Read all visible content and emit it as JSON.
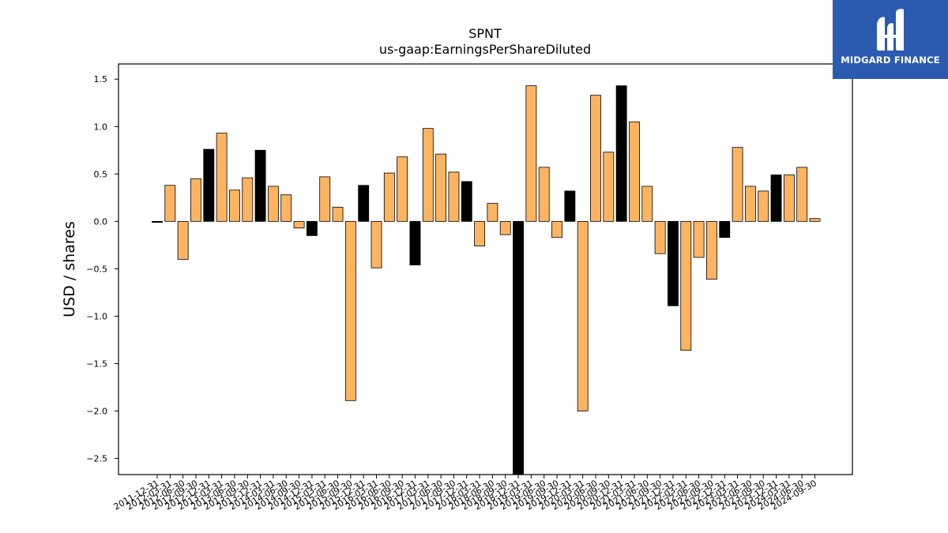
{
  "chart_data": {
    "type": "bar",
    "title": "SPNT",
    "subtitle": "us-gaap:EarningsPerShareDiluted",
    "xlabel": "",
    "ylabel": "USD / shares",
    "ylim": [
      -2.67,
      1.66
    ],
    "yticks": [
      1.5,
      1.0,
      0.5,
      0.0,
      -0.5,
      -1.0,
      -1.5,
      -2.0,
      -2.5
    ],
    "ytick_labels": [
      "1.5",
      "1.0",
      "0.5",
      "0.0",
      "−0.5",
      "−1.0",
      "−1.5",
      "−2.0",
      "−2.5"
    ],
    "grid": false,
    "colors": {
      "quarterly": "#fdb462",
      "annual": "#000000",
      "edge": "#000000"
    },
    "categories": [
      "2011-12-31",
      "2012-03-31",
      "2012-06-30",
      "2012-09-30",
      "2012-12-31",
      "2013-03-31",
      "2013-06-30",
      "2013-09-30",
      "2013-12-31",
      "2014-03-31",
      "2014-06-30",
      "2014-09-30",
      "2014-12-31",
      "2015-03-31",
      "2015-06-30",
      "2015-09-30",
      "2015-12-31",
      "2016-03-31",
      "2016-06-30",
      "2016-09-30",
      "2016-12-31",
      "2017-03-31",
      "2017-06-30",
      "2017-09-30",
      "2017-12-31",
      "2018-03-31",
      "2018-06-30",
      "2018-09-30",
      "2018-12-31",
      "2019-03-31",
      "2019-06-30",
      "2019-09-30",
      "2019-12-31",
      "2020-03-31",
      "2020-06-30",
      "2020-09-30",
      "2020-12-31",
      "2021-03-31",
      "2021-06-30",
      "2021-09-30",
      "2021-12-31",
      "2022-03-31",
      "2022-06-30",
      "2022-09-30",
      "2022-12-31",
      "2023-03-31",
      "2023-06-30",
      "2023-09-30",
      "2023-12-31",
      "2024-03-31",
      "2024-06-30",
      "2024-09-30"
    ],
    "values": [
      -0.01,
      0.38,
      -0.4,
      0.45,
      0.76,
      0.93,
      0.33,
      0.46,
      0.75,
      0.37,
      0.28,
      -0.07,
      -0.15,
      0.47,
      0.15,
      -1.89,
      0.38,
      -0.49,
      0.51,
      0.68,
      -0.46,
      0.98,
      0.71,
      0.52,
      0.42,
      -0.26,
      0.19,
      -0.14,
      -2.67,
      1.43,
      0.57,
      -0.17,
      0.32,
      -2.0,
      1.33,
      0.73,
      1.43,
      1.05,
      0.37,
      -0.34,
      -0.89,
      -1.36,
      -0.38,
      -0.61,
      -0.17,
      0.78,
      0.37,
      0.32,
      0.49,
      0.49,
      0.57,
      0.03
    ],
    "is_annual": [
      true,
      false,
      false,
      false,
      true,
      false,
      false,
      false,
      true,
      false,
      false,
      false,
      true,
      false,
      false,
      false,
      true,
      false,
      false,
      false,
      true,
      false,
      false,
      false,
      true,
      false,
      false,
      false,
      true,
      false,
      false,
      false,
      true,
      false,
      false,
      false,
      true,
      false,
      false,
      false,
      true,
      false,
      false,
      false,
      true,
      false,
      false,
      false,
      true,
      false,
      false,
      false
    ]
  },
  "logo": {
    "text": "MIDGARD FINANCE",
    "icon": "midgard-logo-icon",
    "background": "#2b5bb0"
  }
}
